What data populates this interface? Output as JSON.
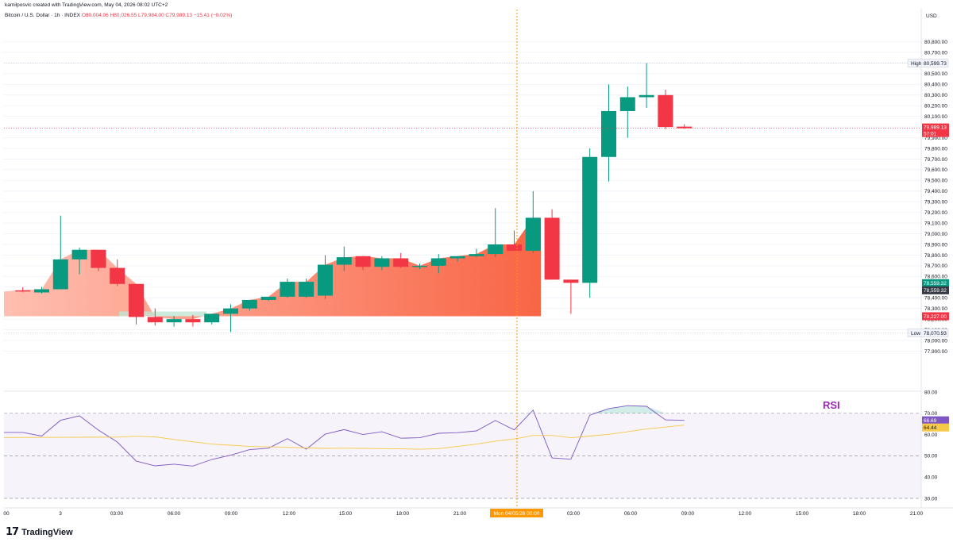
{
  "header": {
    "attribution": "kamilposvic created with TradingView.com, May 04, 2026 08:02 UTC+2"
  },
  "symbol": {
    "name": "Bitcoin / U.S. Dollar · 1h · INDEX",
    "open": "O80,004.06",
    "high": "H80,026.55",
    "low": "L79,984.00",
    "close": "C79,989.13",
    "change": "−15.41 (−0.02%)"
  },
  "axis": {
    "currency": "USD",
    "price_ticks": [
      "80,800.00",
      "80,700.00",
      "80,600.00",
      "80,500.00",
      "80,400.00",
      "80,300.00",
      "80,200.00",
      "80,100.00",
      "80,000.00",
      "79,900.00",
      "79,800.00",
      "79,700.00",
      "79,600.00",
      "79,500.00",
      "79,400.00",
      "79,300.00",
      "79,200.00",
      "79,100.00",
      "79,000.00",
      "78,900.00",
      "78,800.00",
      "78,700.00",
      "78,600.00",
      "78,500.00",
      "78,400.00",
      "78,300.00",
      "78,200.00",
      "78,100.00",
      "78,000.00",
      "77,900.00"
    ],
    "price_tick_values": [
      80800,
      80700,
      80600,
      80500,
      80400,
      80300,
      80200,
      80100,
      80000,
      79900,
      79800,
      79700,
      79600,
      79500,
      79400,
      79300,
      79200,
      79100,
      79000,
      78900,
      78800,
      78700,
      78600,
      78500,
      78400,
      78300,
      78200,
      78100,
      78000,
      77900
    ],
    "rsi_ticks": [
      "80.00",
      "70.00",
      "60.00",
      "50.00",
      "40.00",
      "30.00"
    ],
    "rsi_tick_values": [
      80,
      70,
      60,
      50,
      40,
      30
    ],
    "time_labels": [
      "00",
      "3",
      "03:00",
      "06:00",
      "09:00",
      "12:00",
      "15:00",
      "18:00",
      "21:00",
      "03:00",
      "06:00",
      "09:00",
      "12:00",
      "15:00",
      "18:00",
      "21:00"
    ],
    "crosshair_time": "Mon 04/05/26   00:00"
  },
  "price_labels": {
    "high_tag": "High",
    "high": "80,599.73",
    "low_tag": "Low",
    "low": "78,070.93",
    "last": "79,989.13",
    "countdown": "57:01",
    "green_level": "78,559.32",
    "dark_level": "78,559.32",
    "red_level": "78,227.00"
  },
  "rsi": {
    "annotation": "RSI",
    "value": "66.69",
    "ma_value": "64.44"
  },
  "brand": {
    "logo": "17",
    "name": "TradingView"
  },
  "colors": {
    "up": "#089981",
    "down": "#f23645",
    "rsi_line": "#7e57c2",
    "rsi_ma": "#f7c948",
    "crosshair": "#ff9800",
    "fill_light": "#ffb0a0",
    "fill_dark": "#f8522e"
  },
  "chart_data": {
    "type": "candlestick",
    "interval": "1h",
    "ylim": [
      77850,
      80860
    ],
    "candles": [
      {
        "o": 78470,
        "h": 78500,
        "l": 78450,
        "c": 78460
      },
      {
        "o": 78450,
        "h": 78500,
        "l": 78440,
        "c": 78480
      },
      {
        "o": 78480,
        "h": 79170,
        "l": 78480,
        "c": 78760
      },
      {
        "o": 78760,
        "h": 78870,
        "l": 78620,
        "c": 78850
      },
      {
        "o": 78850,
        "h": 78850,
        "l": 78650,
        "c": 78680
      },
      {
        "o": 78680,
        "h": 78760,
        "l": 78510,
        "c": 78530
      },
      {
        "o": 78530,
        "h": 78530,
        "l": 78150,
        "c": 78220
      },
      {
        "o": 78220,
        "h": 78300,
        "l": 78140,
        "c": 78170
      },
      {
        "o": 78170,
        "h": 78230,
        "l": 78130,
        "c": 78200
      },
      {
        "o": 78200,
        "h": 78240,
        "l": 78130,
        "c": 78170
      },
      {
        "o": 78170,
        "h": 78250,
        "l": 78150,
        "c": 78250
      },
      {
        "o": 78250,
        "h": 78340,
        "l": 78080,
        "c": 78300
      },
      {
        "o": 78300,
        "h": 78380,
        "l": 78280,
        "c": 78380
      },
      {
        "o": 78380,
        "h": 78400,
        "l": 78370,
        "c": 78410
      },
      {
        "o": 78410,
        "h": 78580,
        "l": 78400,
        "c": 78550
      },
      {
        "o": 78410,
        "h": 78580,
        "l": 78400,
        "c": 78550
      },
      {
        "o": 78420,
        "h": 78800,
        "l": 78390,
        "c": 78710
      },
      {
        "o": 78710,
        "h": 78880,
        "l": 78650,
        "c": 78780
      },
      {
        "o": 78790,
        "h": 78790,
        "l": 78660,
        "c": 78690
      },
      {
        "o": 78690,
        "h": 78790,
        "l": 78660,
        "c": 78770
      },
      {
        "o": 78770,
        "h": 78820,
        "l": 78680,
        "c": 78690
      },
      {
        "o": 78690,
        "h": 78720,
        "l": 78670,
        "c": 78700
      },
      {
        "o": 78700,
        "h": 78810,
        "l": 78630,
        "c": 78770
      },
      {
        "o": 78770,
        "h": 78790,
        "l": 78740,
        "c": 78790
      },
      {
        "o": 78790,
        "h": 78860,
        "l": 78780,
        "c": 78810
      },
      {
        "o": 78810,
        "h": 79240,
        "l": 78780,
        "c": 78900
      },
      {
        "o": 78900,
        "h": 79030,
        "l": 78850,
        "c": 78840
      },
      {
        "o": 78840,
        "h": 79400,
        "l": 78820,
        "c": 79150
      },
      {
        "o": 79150,
        "h": 79230,
        "l": 78570,
        "c": 78570
      },
      {
        "o": 78570,
        "h": 78570,
        "l": 78250,
        "c": 78540
      },
      {
        "o": 78540,
        "h": 79800,
        "l": 78400,
        "c": 79720
      },
      {
        "o": 79720,
        "h": 80400,
        "l": 79490,
        "c": 80150
      },
      {
        "o": 80150,
        "h": 80380,
        "l": 79900,
        "c": 80280
      },
      {
        "o": 80280,
        "h": 80599.73,
        "l": 80180,
        "c": 80300
      },
      {
        "o": 80300,
        "h": 80350,
        "l": 79980,
        "c": 80000
      },
      {
        "o": 80004.06,
        "h": 80026.55,
        "l": 79984,
        "c": 79989.13
      }
    ],
    "rsi": [
      61.0,
      59.3,
      66.7,
      68.8,
      62.1,
      56.5,
      47.5,
      45.3,
      46.1,
      45.2,
      48.3,
      50.3,
      52.9,
      53.6,
      58.1,
      53.1,
      60.2,
      62.3,
      60.0,
      61.3,
      58.3,
      58.5,
      60.6,
      60.9,
      61.7,
      66.6,
      62.2,
      71.5,
      49.0,
      48.4,
      69.1,
      72.2,
      73.6,
      73.3,
      66.9,
      66.69
    ],
    "rsi_ma": [
      null,
      null,
      null,
      null,
      null,
      58.8,
      59.2,
      58.9,
      57.7,
      56.6,
      55.5,
      55.0,
      54.4,
      54.2,
      54.0,
      53.7,
      53.5,
      53.6,
      53.5,
      53.4,
      53.3,
      53.1,
      53.4,
      54.4,
      55.5,
      56.9,
      57.9,
      59.6,
      59.6,
      58.5,
      59.3,
      60.1,
      61.3,
      62.6,
      63.5,
      64.44
    ],
    "rsi_levels": {
      "upper": 70,
      "middle": 50,
      "lower": 30
    }
  }
}
